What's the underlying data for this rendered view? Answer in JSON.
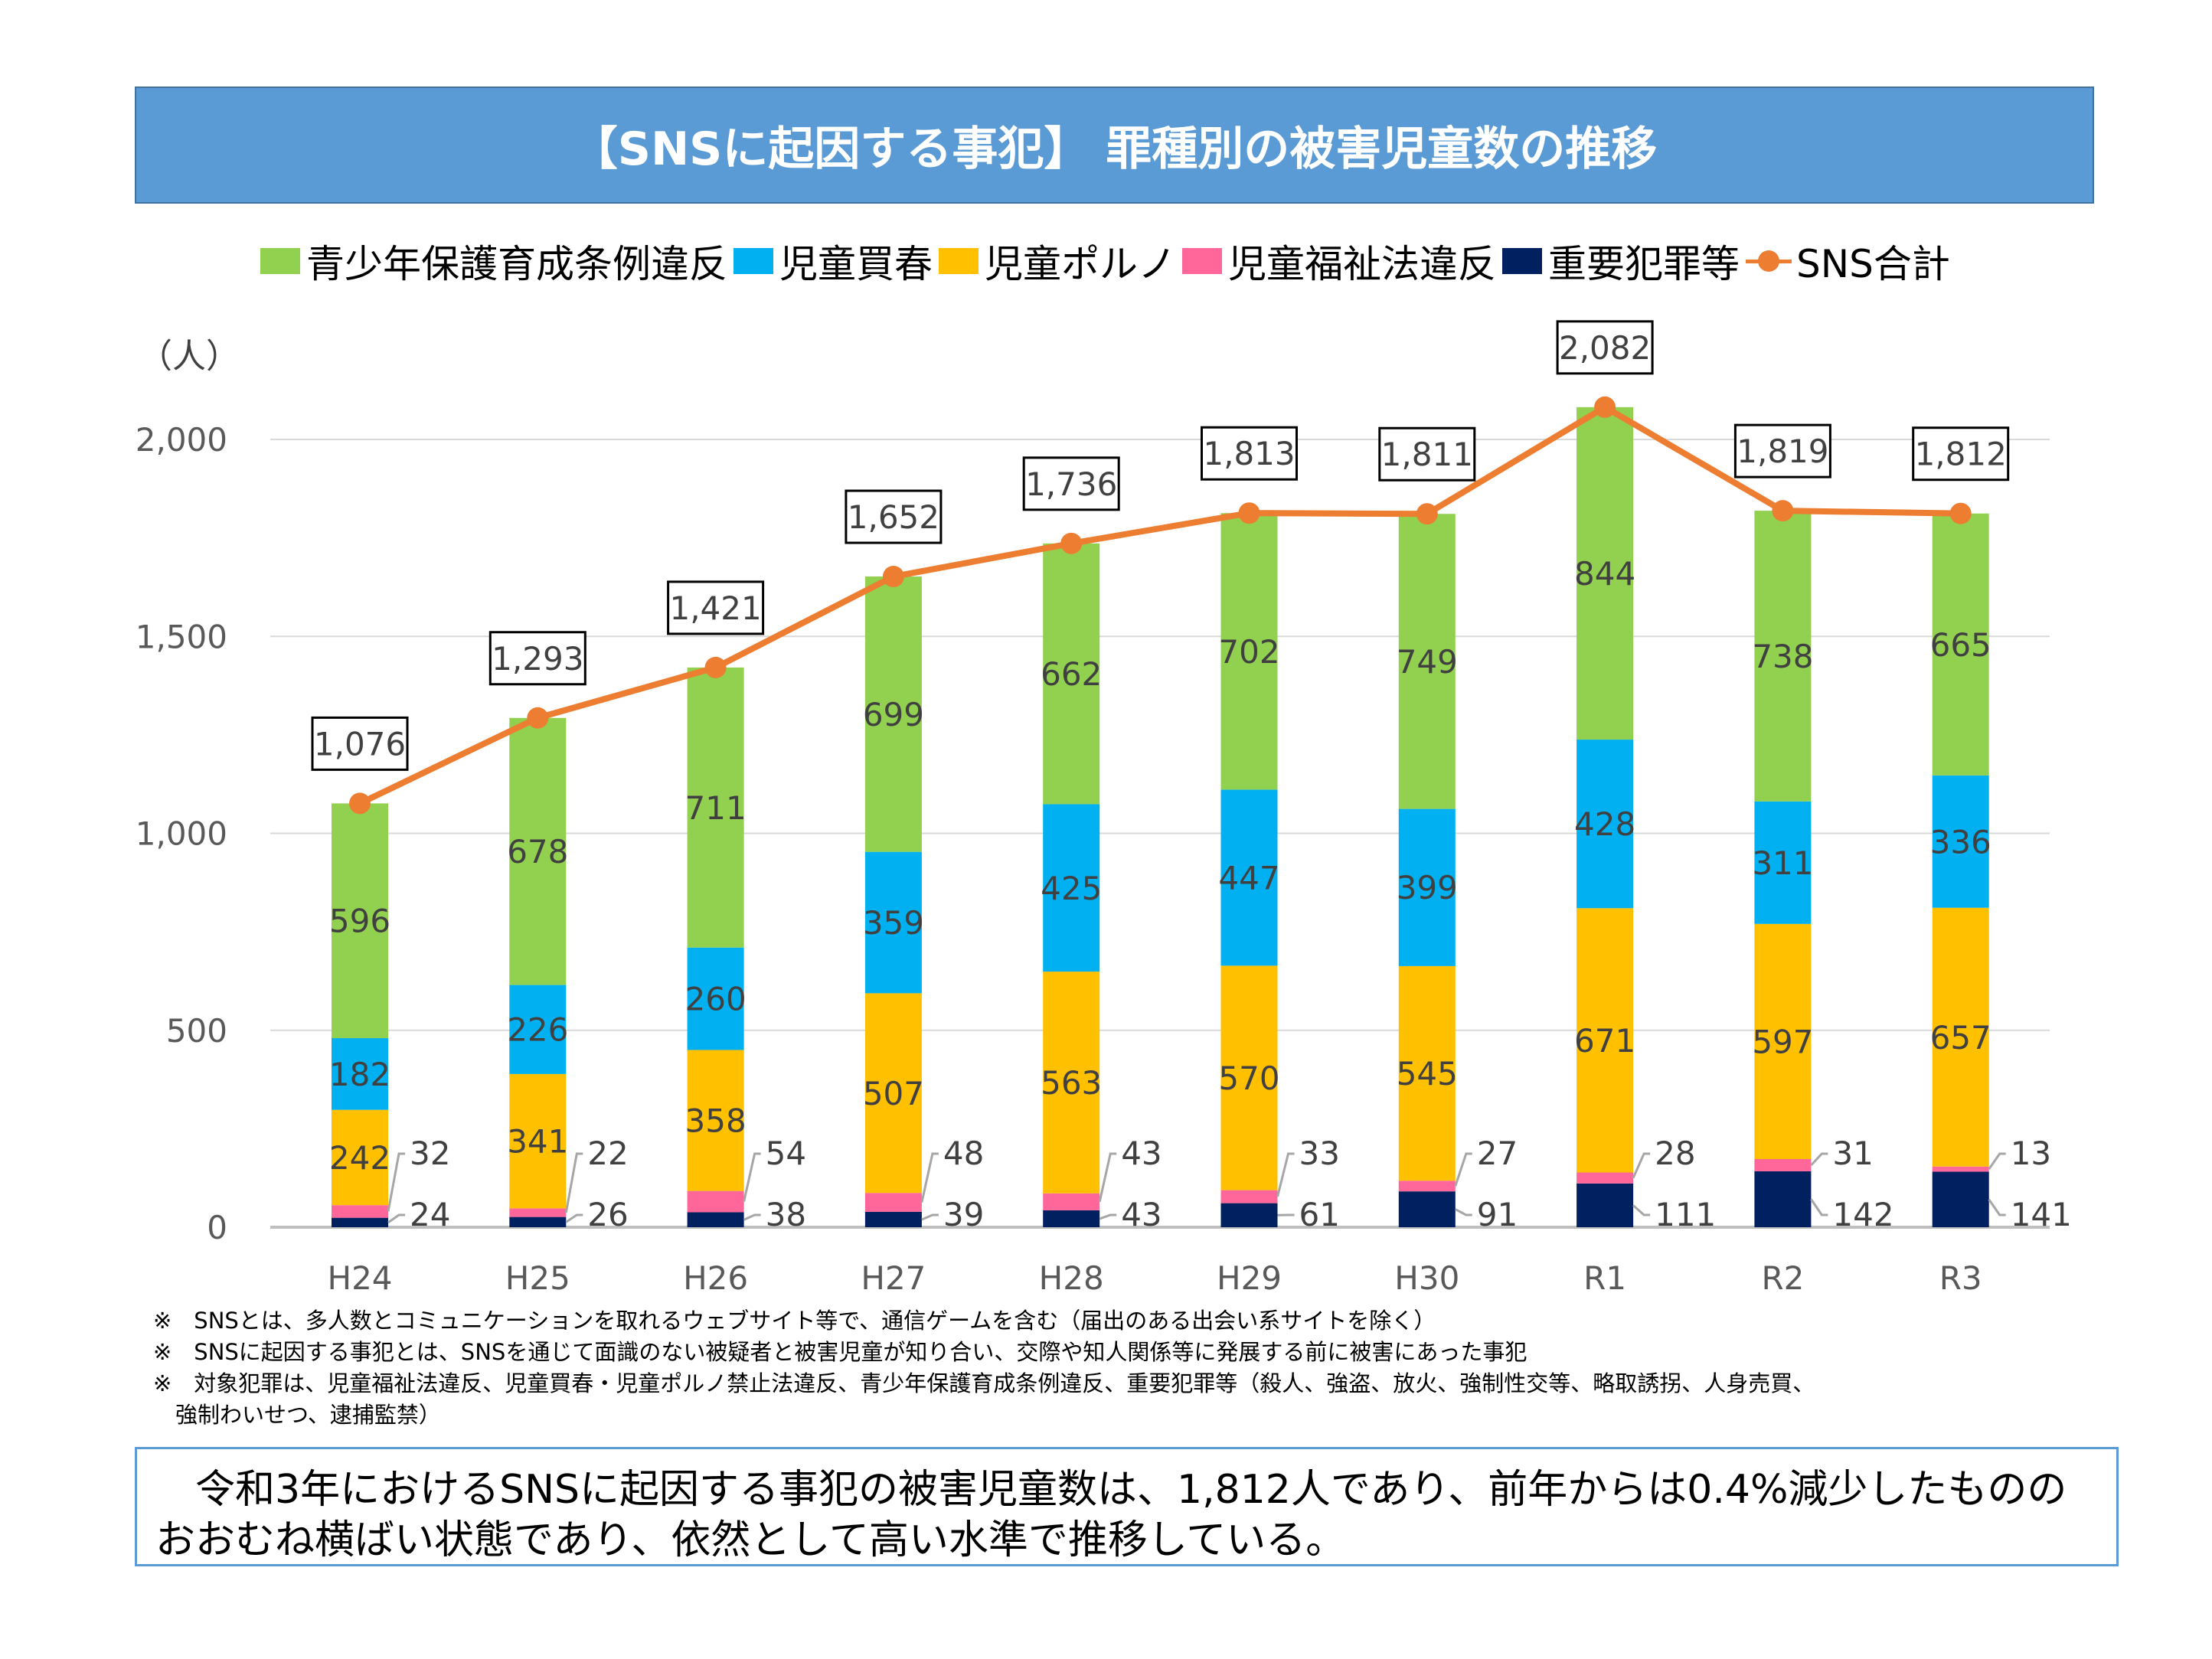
{
  "title": "【SNSに起因する事犯】 罪種別の被害児童数の推移",
  "colors": {
    "title_bg": "#5B9BD5",
    "youth": "#92D050",
    "prostitution": "#00B0F0",
    "porn": "#FFC000",
    "welfare": "#FF6699",
    "serious": "#002060",
    "total": "#ED7D31"
  },
  "chart_data": {
    "type": "bar",
    "stacked": true,
    "ylabel": "（人）",
    "ylim": [
      0,
      2000
    ],
    "yticks": [
      "0",
      "500",
      "1,000",
      "1,500",
      "2,000"
    ],
    "ytick_values": [
      0,
      500,
      1000,
      1500,
      2000
    ],
    "grid": true,
    "legend_position": "top",
    "categories": [
      "H24",
      "H25",
      "H26",
      "H27",
      "H28",
      "H29",
      "H30",
      "R1",
      "R2",
      "R3"
    ],
    "series": [
      {
        "name": "重要犯罪等",
        "values": [
          24,
          26,
          38,
          39,
          43,
          61,
          91,
          111,
          142,
          141
        ]
      },
      {
        "name": "児童福祉法違反",
        "values": [
          32,
          22,
          54,
          48,
          43,
          33,
          27,
          28,
          31,
          13
        ]
      },
      {
        "name": "児童ポルノ",
        "values": [
          242,
          341,
          358,
          507,
          563,
          570,
          545,
          671,
          597,
          657
        ]
      },
      {
        "name": "児童買春",
        "values": [
          182,
          226,
          260,
          359,
          425,
          447,
          399,
          428,
          311,
          336
        ]
      },
      {
        "name": "青少年保護育成条例違反",
        "values": [
          596,
          678,
          711,
          699,
          662,
          702,
          749,
          844,
          738,
          665
        ]
      }
    ],
    "line": {
      "name": "SNS合計",
      "type": "line",
      "values": [
        1076,
        1293,
        1421,
        1652,
        1736,
        1813,
        1811,
        2082,
        1819,
        1812
      ],
      "labels": [
        "1,076",
        "1,293",
        "1,421",
        "1,652",
        "1,736",
        "1,813",
        "1,811",
        "2,082",
        "1,819",
        "1,812"
      ]
    }
  },
  "legend": [
    "青少年保護育成条例違反",
    "児童買春",
    "児童ポルノ",
    "児童福祉法違反",
    "重要犯罪等",
    "SNS合計"
  ],
  "notes": [
    "※　SNSとは、多人数とコミュニケーションを取れるウェブサイト等で、通信ゲームを含む（届出のある出会い系サイトを除く）",
    "※　SNSに起因する事犯とは、SNSを通じて面識のない被疑者と被害児童が知り合い、交際や知人関係等に発展する前に被害にあった事犯",
    "※　対象犯罪は、児童福祉法違反、児童買春・児童ポルノ禁止法違反、青少年保護育成条例違反、重要犯罪等（殺人、強盗、放火、強制性交等、略取誘拐、人身売買、",
    "　強制わいせつ、逮捕監禁）"
  ],
  "summary": [
    "　令和3年におけるSNSに起因する事犯の被害児童数は、1,812人であり、前年からは0.4%減少したものの",
    "おおむね横ばい状態であり、依然として高い水準で推移している。"
  ]
}
